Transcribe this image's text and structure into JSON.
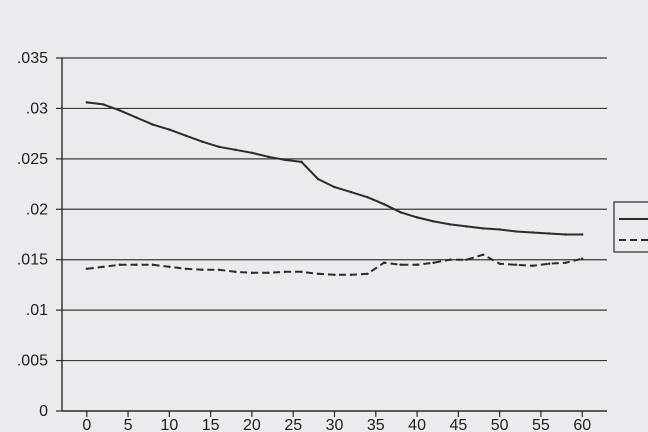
{
  "chart_data": {
    "type": "line",
    "title": "",
    "xlabel": "",
    "ylabel": "",
    "xlim": [
      -3,
      63
    ],
    "ylim": [
      0,
      0.035
    ],
    "grid": true,
    "x_ticks": [
      0,
      5,
      10,
      15,
      20,
      25,
      30,
      35,
      40,
      45,
      50,
      55,
      60
    ],
    "x_tick_labels": [
      "0",
      "5",
      "10",
      "15",
      "20",
      "25",
      "30",
      "35",
      "40",
      "45",
      "50",
      "55",
      "60"
    ],
    "y_ticks": [
      0,
      0.005,
      0.01,
      0.015,
      0.02,
      0.025,
      0.03,
      0.035
    ],
    "y_tick_labels": [
      "0",
      ".005",
      ".01",
      ".015",
      ".02",
      ".025",
      ".03",
      ".035"
    ],
    "legend_position": "right",
    "series": [
      {
        "style": "solid",
        "x": [
          0,
          2,
          4,
          6,
          8,
          10,
          12,
          14,
          16,
          18,
          20,
          22,
          24,
          26,
          28,
          30,
          32,
          34,
          36,
          38,
          40,
          42,
          44,
          46,
          48,
          50,
          52,
          54,
          56,
          58,
          60
        ],
        "values": [
          0.0306,
          0.0304,
          0.0298,
          0.0291,
          0.0284,
          0.0279,
          0.0273,
          0.0267,
          0.0262,
          0.0259,
          0.0256,
          0.0252,
          0.0249,
          0.0247,
          0.023,
          0.0222,
          0.0217,
          0.0212,
          0.0205,
          0.0197,
          0.0192,
          0.0188,
          0.0185,
          0.0183,
          0.0181,
          0.018,
          0.0178,
          0.0177,
          0.0176,
          0.0175,
          0.0175
        ]
      },
      {
        "style": "dashed",
        "x": [
          0,
          2,
          4,
          6,
          8,
          10,
          12,
          14,
          16,
          18,
          20,
          22,
          24,
          26,
          28,
          30,
          32,
          34,
          36,
          38,
          40,
          42,
          44,
          46,
          48,
          50,
          52,
          54,
          56,
          58,
          60
        ],
        "values": [
          0.0141,
          0.0143,
          0.0145,
          0.0145,
          0.0145,
          0.0143,
          0.0141,
          0.014,
          0.014,
          0.0138,
          0.0137,
          0.0137,
          0.0138,
          0.0138,
          0.0136,
          0.0135,
          0.0135,
          0.0136,
          0.0147,
          0.0145,
          0.0145,
          0.0147,
          0.015,
          0.015,
          0.0155,
          0.0146,
          0.0145,
          0.0144,
          0.0146,
          0.0147,
          0.0151
        ]
      }
    ]
  }
}
